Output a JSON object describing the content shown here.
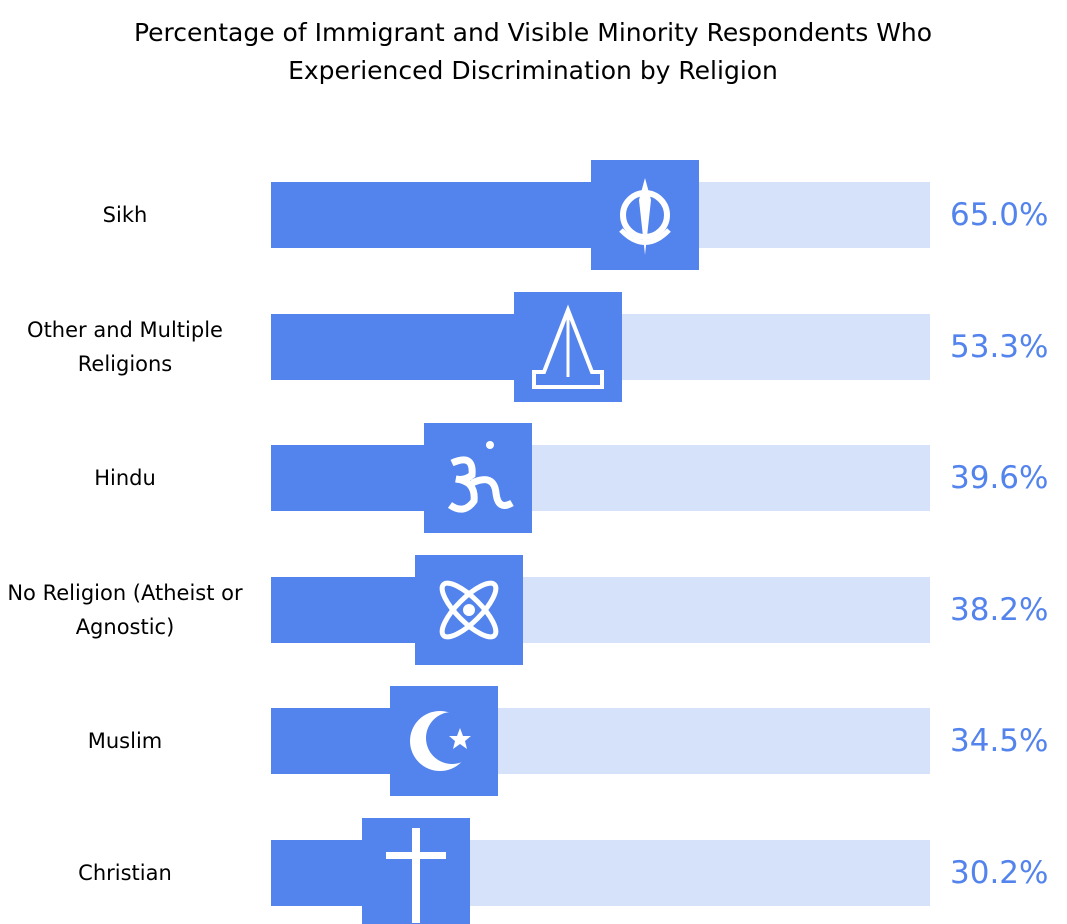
{
  "chart_data": {
    "type": "bar",
    "title": "Percentage of Immigrant and Visible Minority Respondents Who Experienced Discrimination by Religion",
    "categories": [
      "Sikh",
      "Other and Multiple Religions",
      "Hindu",
      "No Religion (Atheist or Agnostic)",
      "Muslim",
      "Christian"
    ],
    "values": [
      65.0,
      53.3,
      39.6,
      38.2,
      34.5,
      30.2
    ],
    "value_labels": [
      "65.0%",
      "53.3%",
      "39.6%",
      "38.2%",
      "34.5%",
      "30.2%"
    ],
    "xlim": [
      0,
      100
    ],
    "color": "#5383ec",
    "track_color": "#d6e2f9"
  }
}
